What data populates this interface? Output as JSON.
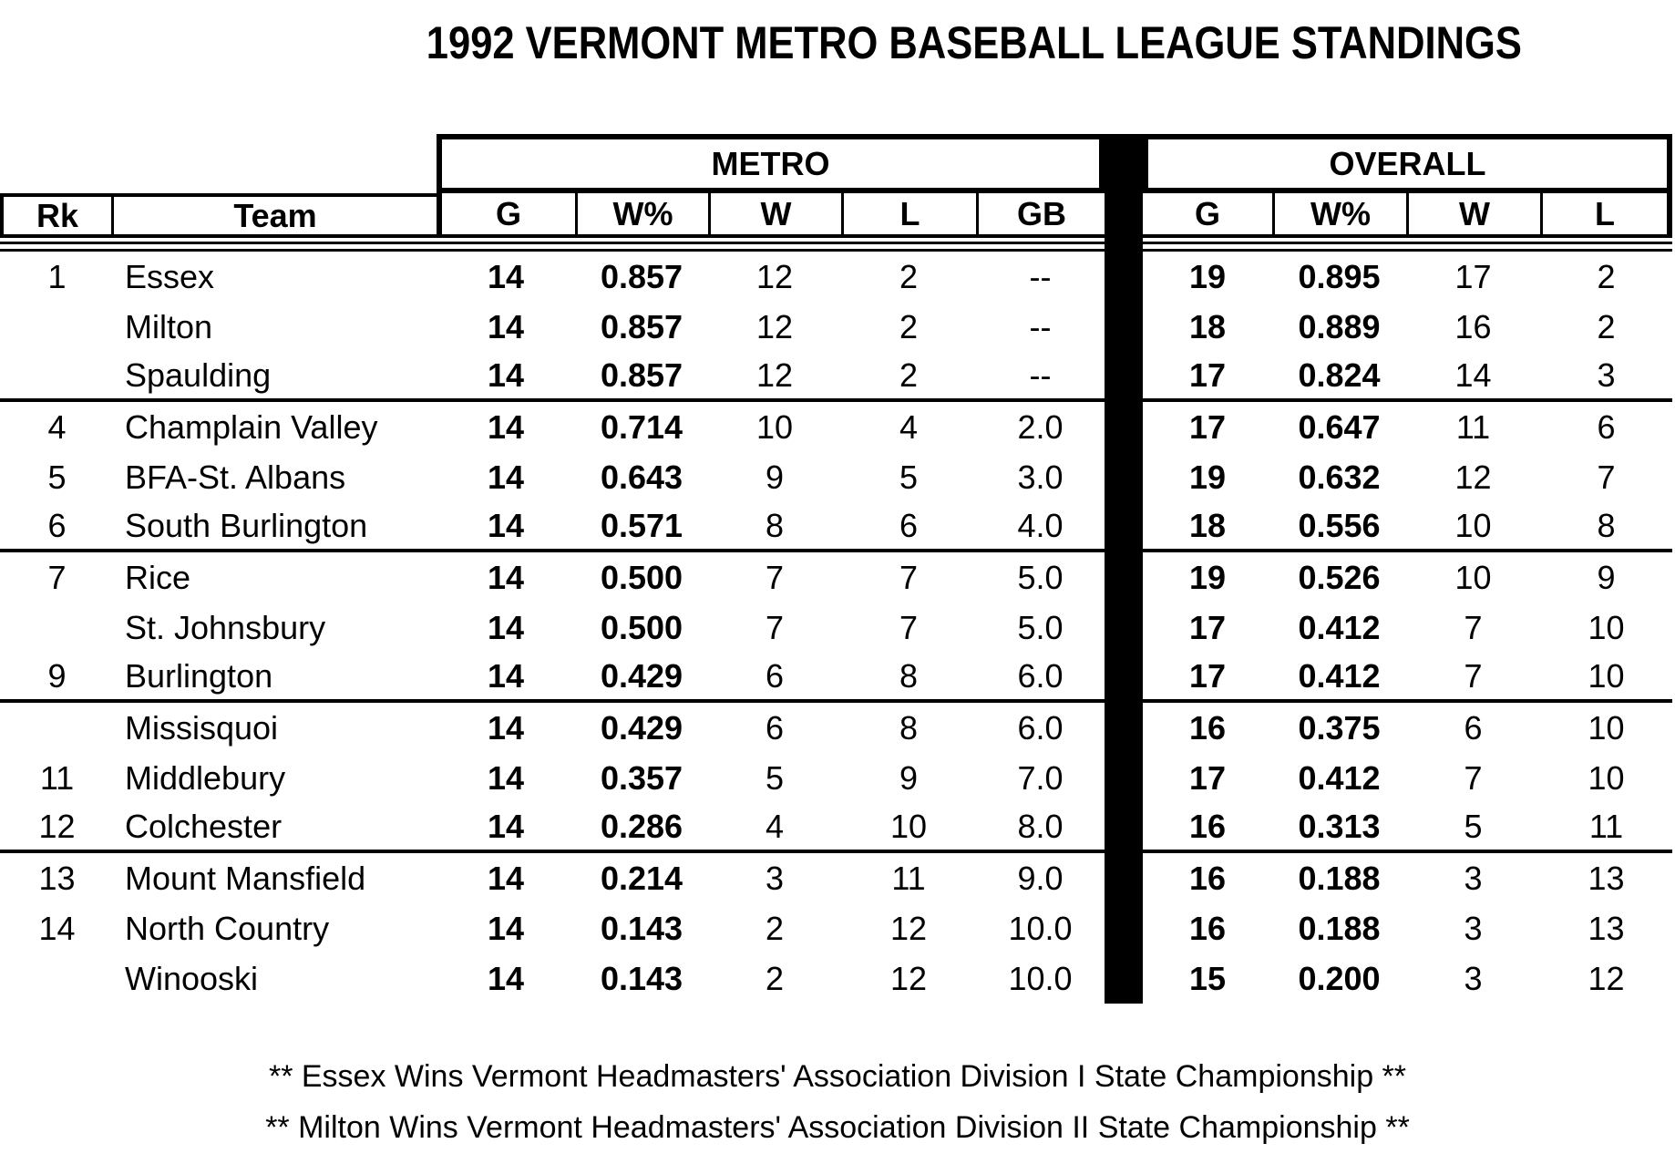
{
  "title": "1992 VERMONT METRO BASEBALL LEAGUE STANDINGS",
  "sections": {
    "metro": "METRO",
    "overall": "OVERALL"
  },
  "columns": {
    "rank": "Rk",
    "team": "Team",
    "metro": [
      "G",
      "W%",
      "W",
      "L",
      "GB"
    ],
    "overall": [
      "G",
      "W%",
      "W",
      "L"
    ]
  },
  "rows": [
    {
      "rank": "1",
      "team": "Essex",
      "metro": {
        "g": "14",
        "wpct": "0.857",
        "w": "12",
        "l": "2",
        "gb": "--"
      },
      "overall": {
        "g": "19",
        "wpct": "0.895",
        "w": "17",
        "l": "2"
      },
      "divider_after": false
    },
    {
      "rank": "",
      "team": "Milton",
      "metro": {
        "g": "14",
        "wpct": "0.857",
        "w": "12",
        "l": "2",
        "gb": "--"
      },
      "overall": {
        "g": "18",
        "wpct": "0.889",
        "w": "16",
        "l": "2"
      },
      "divider_after": false
    },
    {
      "rank": "",
      "team": "Spaulding",
      "metro": {
        "g": "14",
        "wpct": "0.857",
        "w": "12",
        "l": "2",
        "gb": "--"
      },
      "overall": {
        "g": "17",
        "wpct": "0.824",
        "w": "14",
        "l": "3"
      },
      "divider_after": true
    },
    {
      "rank": "4",
      "team": "Champlain Valley",
      "metro": {
        "g": "14",
        "wpct": "0.714",
        "w": "10",
        "l": "4",
        "gb": "2.0"
      },
      "overall": {
        "g": "17",
        "wpct": "0.647",
        "w": "11",
        "l": "6"
      },
      "divider_after": false
    },
    {
      "rank": "5",
      "team": "BFA-St. Albans",
      "metro": {
        "g": "14",
        "wpct": "0.643",
        "w": "9",
        "l": "5",
        "gb": "3.0"
      },
      "overall": {
        "g": "19",
        "wpct": "0.632",
        "w": "12",
        "l": "7"
      },
      "divider_after": false
    },
    {
      "rank": "6",
      "team": "South Burlington",
      "metro": {
        "g": "14",
        "wpct": "0.571",
        "w": "8",
        "l": "6",
        "gb": "4.0"
      },
      "overall": {
        "g": "18",
        "wpct": "0.556",
        "w": "10",
        "l": "8"
      },
      "divider_after": true
    },
    {
      "rank": "7",
      "team": "Rice",
      "metro": {
        "g": "14",
        "wpct": "0.500",
        "w": "7",
        "l": "7",
        "gb": "5.0"
      },
      "overall": {
        "g": "19",
        "wpct": "0.526",
        "w": "10",
        "l": "9"
      },
      "divider_after": false
    },
    {
      "rank": "",
      "team": "St. Johnsbury",
      "metro": {
        "g": "14",
        "wpct": "0.500",
        "w": "7",
        "l": "7",
        "gb": "5.0"
      },
      "overall": {
        "g": "17",
        "wpct": "0.412",
        "w": "7",
        "l": "10"
      },
      "divider_after": false
    },
    {
      "rank": "9",
      "team": "Burlington",
      "metro": {
        "g": "14",
        "wpct": "0.429",
        "w": "6",
        "l": "8",
        "gb": "6.0"
      },
      "overall": {
        "g": "17",
        "wpct": "0.412",
        "w": "7",
        "l": "10"
      },
      "divider_after": true
    },
    {
      "rank": "",
      "team": "Missisquoi",
      "metro": {
        "g": "14",
        "wpct": "0.429",
        "w": "6",
        "l": "8",
        "gb": "6.0"
      },
      "overall": {
        "g": "16",
        "wpct": "0.375",
        "w": "6",
        "l": "10"
      },
      "divider_after": false
    },
    {
      "rank": "11",
      "team": "Middlebury",
      "metro": {
        "g": "14",
        "wpct": "0.357",
        "w": "5",
        "l": "9",
        "gb": "7.0"
      },
      "overall": {
        "g": "17",
        "wpct": "0.412",
        "w": "7",
        "l": "10"
      },
      "divider_after": false
    },
    {
      "rank": "12",
      "team": "Colchester",
      "metro": {
        "g": "14",
        "wpct": "0.286",
        "w": "4",
        "l": "10",
        "gb": "8.0"
      },
      "overall": {
        "g": "16",
        "wpct": "0.313",
        "w": "5",
        "l": "11"
      },
      "divider_after": true
    },
    {
      "rank": "13",
      "team": "Mount Mansfield",
      "metro": {
        "g": "14",
        "wpct": "0.214",
        "w": "3",
        "l": "11",
        "gb": "9.0"
      },
      "overall": {
        "g": "16",
        "wpct": "0.188",
        "w": "3",
        "l": "13"
      },
      "divider_after": false
    },
    {
      "rank": "14",
      "team": "North Country",
      "metro": {
        "g": "14",
        "wpct": "0.143",
        "w": "2",
        "l": "12",
        "gb": "10.0"
      },
      "overall": {
        "g": "16",
        "wpct": "0.188",
        "w": "3",
        "l": "13"
      },
      "divider_after": false
    },
    {
      "rank": "",
      "team": "Winooski",
      "metro": {
        "g": "14",
        "wpct": "0.143",
        "w": "2",
        "l": "12",
        "gb": "10.0"
      },
      "overall": {
        "g": "15",
        "wpct": "0.200",
        "w": "3",
        "l": "12"
      },
      "divider_after": false
    }
  ],
  "footnotes": [
    "** Essex Wins Vermont Headmasters' Association Division I State Championship **",
    "** Milton Wins Vermont Headmasters' Association Division II State Championship **"
  ],
  "colors": {
    "ink": "#000000",
    "paper": "#ffffff"
  }
}
